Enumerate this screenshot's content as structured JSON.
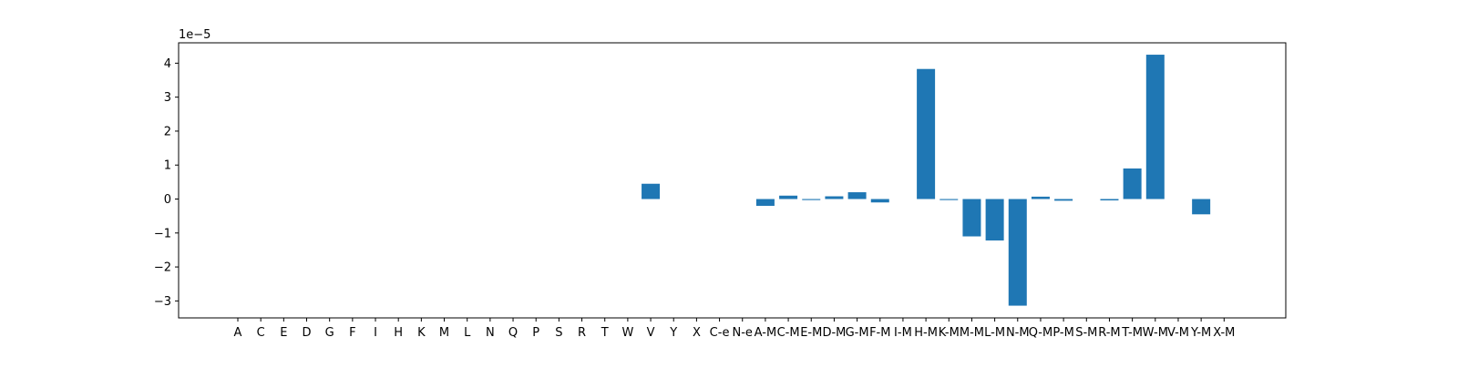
{
  "chart_data": {
    "type": "bar",
    "title": "",
    "xlabel": "",
    "ylabel": "",
    "offset_label": "1e−5",
    "ylim": [
      -3.5,
      4.6
    ],
    "yticks": [
      4,
      3,
      2,
      1,
      0,
      -1,
      -2,
      -3
    ],
    "ytick_labels": [
      "4",
      "3",
      "2",
      "1",
      "0",
      "−1",
      "−2",
      "−3"
    ],
    "grid": false,
    "bar_color": "#1f77b4",
    "categories": [
      "A",
      "C",
      "E",
      "D",
      "G",
      "F",
      "I",
      "H",
      "K",
      "M",
      "L",
      "N",
      "Q",
      "P",
      "S",
      "R",
      "T",
      "W",
      "V",
      "Y",
      "X",
      "C-e",
      "N-e",
      "A-M",
      "C-M",
      "E-M",
      "D-M",
      "G-M",
      "F-M",
      "I-M",
      "H-M",
      "K-M",
      "M-M",
      "L-M",
      "N-M",
      "Q-M",
      "P-M",
      "S-M",
      "R-M",
      "T-M",
      "W-M",
      "V-M",
      "Y-M",
      "X-M"
    ],
    "values": [
      0,
      0,
      0,
      0,
      0,
      0,
      0,
      0,
      0,
      0,
      0,
      0,
      0,
      0,
      0,
      0,
      0,
      0,
      0.45,
      0,
      0,
      0,
      0,
      -0.2,
      0.1,
      -0.03,
      0.08,
      0.2,
      -0.1,
      0,
      3.83,
      -0.03,
      -1.1,
      -1.22,
      -3.14,
      0.07,
      -0.05,
      0,
      -0.04,
      0.9,
      4.25,
      0,
      -0.45,
      0
    ]
  }
}
